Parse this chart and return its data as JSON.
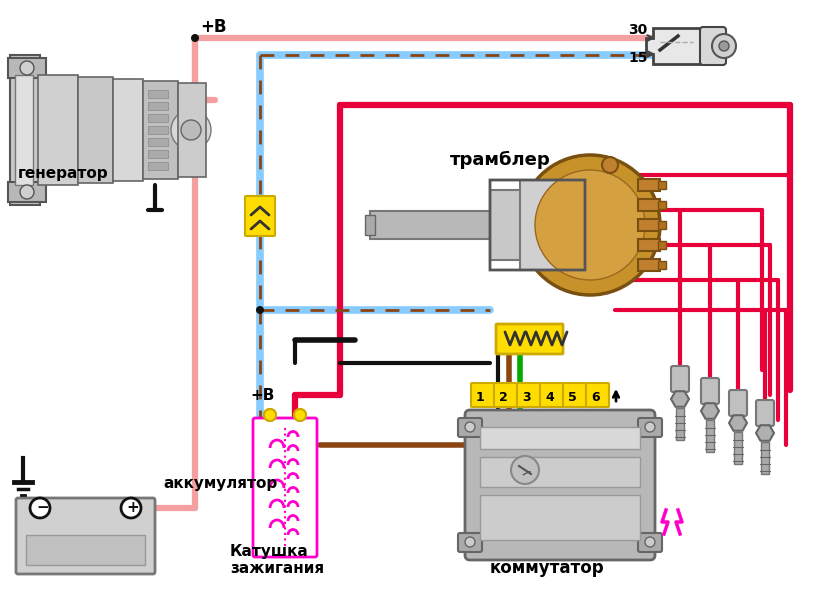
{
  "bg_color": "#ffffff",
  "pink_wire": "#f4a0a0",
  "blue_wire": "#88ccff",
  "red_wire": "#e8003a",
  "brown_dash": "#8B4513",
  "brown_wire": "#8B4513",
  "green_wire": "#00aa00",
  "black_wire": "#111111",
  "magenta_wire": "#ff00cc",
  "yellow": "#ffdd00",
  "gray_light": "#cccccc",
  "gray_med": "#aaaaaa",
  "gray_dark": "#888888",
  "labels": {
    "generator": "генератор",
    "accumulator": "аккумулятор",
    "trambler": "трамблер",
    "coil": "Катушка\nзажигания",
    "commutator": "коммутатор",
    "plus_b": "+В",
    "n30": "30",
    "n15": "15"
  },
  "wire_lw": 3.0,
  "wire_lw_thick": 4.5
}
